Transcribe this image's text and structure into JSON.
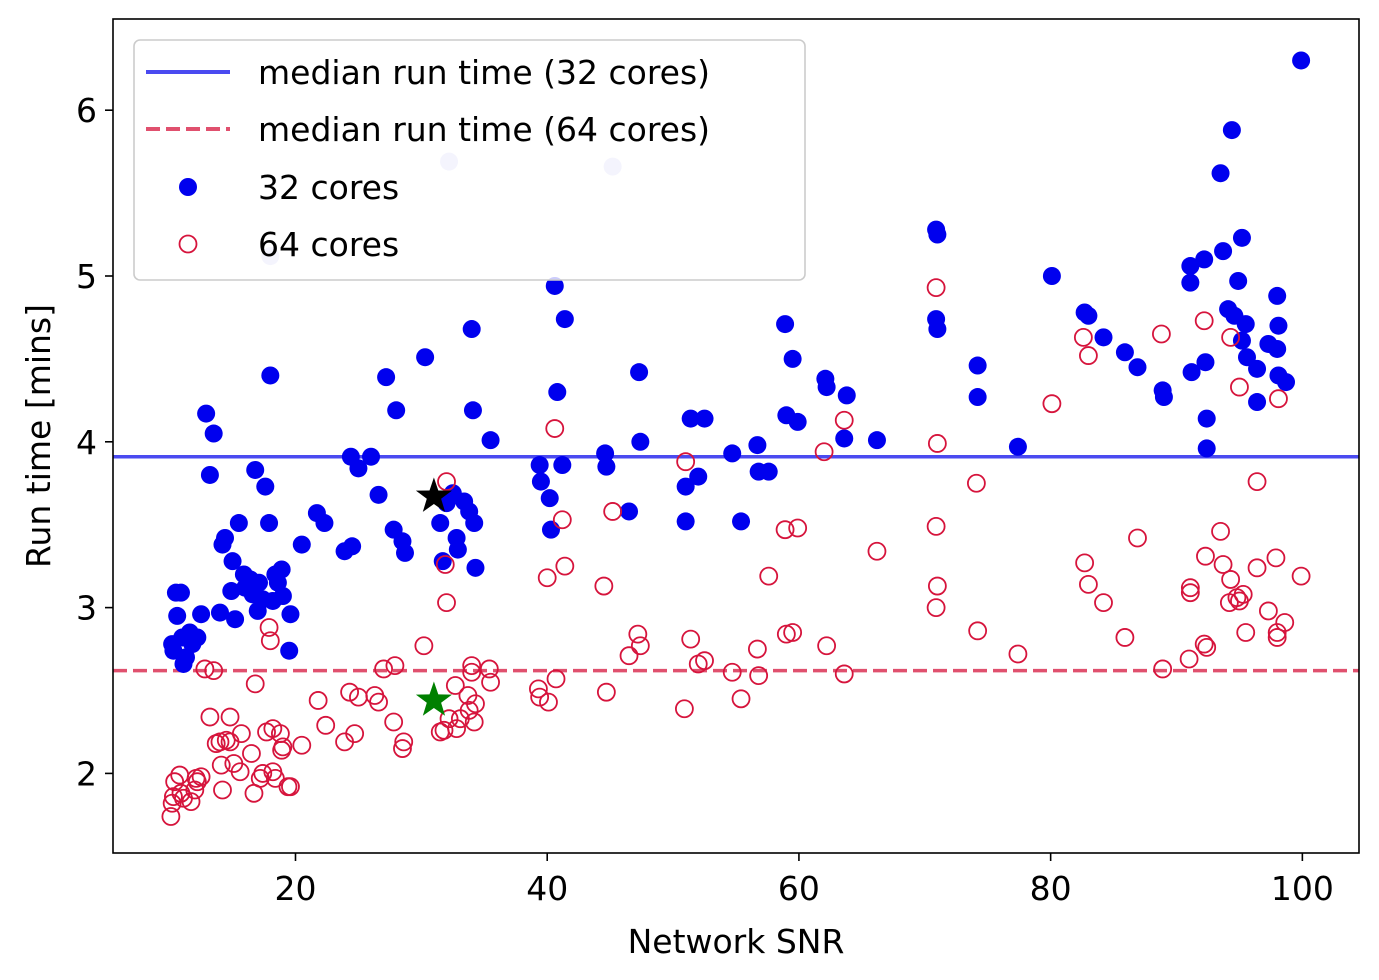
{
  "chart_data": {
    "type": "scatter",
    "title": "",
    "xlabel": "Network SNR",
    "ylabel": "Run time [mins]",
    "xlim": [
      5.5,
      104.5
    ],
    "ylim": [
      1.52,
      6.55
    ],
    "xticks": [
      20,
      40,
      60,
      80,
      100
    ],
    "yticks": [
      2,
      3,
      4,
      5,
      6
    ],
    "xtick_labels": [
      "20",
      "40",
      "60",
      "80",
      "100"
    ],
    "ytick_labels": [
      "2",
      "3",
      "4",
      "5",
      "6"
    ],
    "grid": false,
    "legend_position": "top-left",
    "legend": [
      {
        "label": "median run time (32 cores)",
        "kind": "solid-line",
        "color": "#4a4af0"
      },
      {
        "label": "median run time (64 cores)",
        "kind": "dashed-line",
        "color": "#e0506e"
      },
      {
        "label": "32 cores",
        "kind": "filled-marker",
        "color": "#0000ee"
      },
      {
        "label": "64 cores",
        "kind": "open-marker",
        "color": "#d6143c"
      }
    ],
    "hlines": [
      {
        "name": "median-32",
        "y": 3.91,
        "style": "solid",
        "color": "#4a4af0"
      },
      {
        "name": "median-64",
        "y": 2.62,
        "style": "dashed",
        "color": "#e0506e"
      }
    ],
    "highlights": [
      {
        "name": "star-black",
        "x": 31,
        "y": 3.67,
        "color": "#000000"
      },
      {
        "name": "star-green",
        "x": 31,
        "y": 2.44,
        "color": "#008000"
      }
    ],
    "series": [
      {
        "name": "32 cores",
        "color": "#0000ee",
        "marker": "filled",
        "points": [
          [
            10.2,
            2.78
          ],
          [
            10.3,
            2.74
          ],
          [
            10.5,
            3.09
          ],
          [
            10.6,
            2.95
          ],
          [
            10.9,
            3.09
          ],
          [
            11.0,
            2.82
          ],
          [
            11.1,
            2.66
          ],
          [
            11.3,
            2.7
          ],
          [
            11.6,
            2.85
          ],
          [
            11.8,
            2.78
          ],
          [
            12.2,
            2.82
          ],
          [
            12.5,
            2.96
          ],
          [
            12.9,
            4.17
          ],
          [
            13.2,
            3.8
          ],
          [
            13.5,
            4.05
          ],
          [
            14.0,
            2.97
          ],
          [
            14.2,
            3.38
          ],
          [
            14.4,
            3.42
          ],
          [
            14.9,
            3.1
          ],
          [
            15.0,
            3.28
          ],
          [
            15.2,
            2.93
          ],
          [
            15.5,
            3.51
          ],
          [
            15.9,
            3.2
          ],
          [
            16.0,
            3.12
          ],
          [
            16.4,
            3.17
          ],
          [
            16.6,
            3.08
          ],
          [
            16.8,
            3.83
          ],
          [
            17.0,
            2.98
          ],
          [
            17.1,
            3.15
          ],
          [
            17.4,
            3.05
          ],
          [
            17.6,
            3.73
          ],
          [
            17.9,
            3.51
          ],
          [
            18.0,
            4.4
          ],
          [
            18.2,
            3.04
          ],
          [
            18.4,
            3.2
          ],
          [
            18.6,
            3.15
          ],
          [
            18.9,
            3.23
          ],
          [
            19.0,
            3.07
          ],
          [
            19.5,
            2.74
          ],
          [
            19.6,
            2.96
          ],
          [
            20.5,
            3.38
          ],
          [
            21.7,
            3.57
          ],
          [
            22.3,
            3.51
          ],
          [
            23.9,
            3.34
          ],
          [
            24.5,
            3.37
          ],
          [
            24.4,
            3.91
          ],
          [
            25.0,
            3.84
          ],
          [
            26.0,
            3.91
          ],
          [
            26.6,
            3.68
          ],
          [
            27.2,
            4.39
          ],
          [
            27.8,
            3.47
          ],
          [
            28.0,
            4.19
          ],
          [
            28.5,
            3.4
          ],
          [
            28.7,
            3.33
          ],
          [
            30.3,
            4.51
          ],
          [
            31.5,
            3.51
          ],
          [
            31.7,
            3.28
          ],
          [
            32.0,
            3.63
          ],
          [
            32.5,
            3.69
          ],
          [
            32.8,
            3.42
          ],
          [
            32.9,
            3.35
          ],
          [
            33.4,
            3.64
          ],
          [
            33.8,
            3.58
          ],
          [
            34.0,
            4.68
          ],
          [
            34.1,
            4.19
          ],
          [
            34.2,
            3.51
          ],
          [
            34.3,
            3.24
          ],
          [
            35.5,
            4.01
          ],
          [
            39.4,
            3.86
          ],
          [
            39.5,
            3.76
          ],
          [
            40.2,
            3.66
          ],
          [
            40.3,
            3.47
          ],
          [
            40.6,
            4.94
          ],
          [
            40.8,
            4.3
          ],
          [
            41.2,
            3.86
          ],
          [
            41.4,
            4.74
          ],
          [
            44.6,
            3.93
          ],
          [
            44.7,
            3.85
          ],
          [
            46.5,
            3.58
          ],
          [
            47.3,
            4.42
          ],
          [
            47.4,
            4.0
          ],
          [
            51.0,
            3.52
          ],
          [
            51.0,
            3.73
          ],
          [
            51.4,
            4.14
          ],
          [
            52.0,
            3.79
          ],
          [
            52.5,
            4.14
          ],
          [
            54.7,
            3.93
          ],
          [
            55.4,
            3.52
          ],
          [
            56.7,
            3.98
          ],
          [
            56.8,
            3.82
          ],
          [
            57.6,
            3.82
          ],
          [
            58.9,
            4.71
          ],
          [
            59.0,
            4.16
          ],
          [
            59.5,
            4.5
          ],
          [
            59.9,
            4.12
          ],
          [
            62.1,
            4.38
          ],
          [
            62.2,
            4.33
          ],
          [
            63.6,
            4.02
          ],
          [
            63.8,
            4.28
          ],
          [
            66.2,
            4.01
          ],
          [
            70.9,
            5.28
          ],
          [
            71.0,
            5.25
          ],
          [
            70.9,
            4.74
          ],
          [
            71.0,
            4.68
          ],
          [
            74.2,
            4.46
          ],
          [
            74.2,
            4.27
          ],
          [
            77.4,
            3.97
          ],
          [
            80.1,
            5.0
          ],
          [
            82.7,
            4.78
          ],
          [
            83.0,
            4.76
          ],
          [
            84.2,
            4.63
          ],
          [
            85.9,
            4.54
          ],
          [
            86.9,
            4.45
          ],
          [
            88.9,
            4.31
          ],
          [
            89.0,
            4.27
          ],
          [
            91.1,
            5.06
          ],
          [
            91.1,
            4.96
          ],
          [
            91.2,
            4.42
          ],
          [
            92.2,
            5.1
          ],
          [
            92.3,
            4.48
          ],
          [
            92.4,
            4.14
          ],
          [
            92.4,
            3.96
          ],
          [
            93.5,
            5.62
          ],
          [
            93.7,
            5.15
          ],
          [
            94.1,
            4.8
          ],
          [
            94.4,
            5.88
          ],
          [
            94.6,
            4.76
          ],
          [
            94.9,
            4.97
          ],
          [
            95.2,
            5.23
          ],
          [
            95.2,
            4.61
          ],
          [
            95.5,
            4.71
          ],
          [
            95.6,
            4.51
          ],
          [
            96.4,
            4.44
          ],
          [
            96.4,
            4.24
          ],
          [
            97.3,
            4.59
          ],
          [
            98.0,
            4.88
          ],
          [
            98.0,
            4.56
          ],
          [
            98.1,
            4.7
          ],
          [
            98.1,
            4.4
          ],
          [
            98.7,
            4.36
          ],
          [
            99.9,
            6.3
          ]
        ]
      },
      {
        "name": "64 cores",
        "color": "#d6143c",
        "marker": "open",
        "points": [
          [
            10.1,
            1.74
          ],
          [
            10.2,
            1.82
          ],
          [
            10.3,
            1.86
          ],
          [
            10.4,
            1.95
          ],
          [
            10.8,
            1.99
          ],
          [
            10.9,
            1.88
          ],
          [
            11.1,
            1.85
          ],
          [
            11.7,
            1.83
          ],
          [
            12.0,
            1.9
          ],
          [
            12.1,
            1.97
          ],
          [
            12.2,
            1.95
          ],
          [
            12.5,
            1.98
          ],
          [
            12.8,
            2.63
          ],
          [
            13.2,
            2.34
          ],
          [
            13.5,
            2.62
          ],
          [
            13.7,
            2.18
          ],
          [
            14.0,
            2.19
          ],
          [
            14.2,
            1.9
          ],
          [
            14.1,
            2.05
          ],
          [
            14.5,
            2.2
          ],
          [
            14.8,
            2.19
          ],
          [
            14.8,
            2.34
          ],
          [
            15.1,
            2.06
          ],
          [
            15.6,
            2.01
          ],
          [
            15.7,
            2.24
          ],
          [
            16.5,
            2.12
          ],
          [
            16.7,
            1.88
          ],
          [
            16.8,
            2.54
          ],
          [
            17.2,
            1.97
          ],
          [
            17.4,
            2.0
          ],
          [
            17.7,
            2.25
          ],
          [
            17.9,
            2.88
          ],
          [
            18.0,
            2.8
          ],
          [
            18.2,
            2.27
          ],
          [
            18.2,
            2.01
          ],
          [
            18.4,
            1.97
          ],
          [
            18.8,
            2.24
          ],
          [
            18.9,
            2.14
          ],
          [
            19.0,
            2.16
          ],
          [
            19.4,
            1.92
          ],
          [
            19.6,
            1.92
          ],
          [
            20.5,
            2.17
          ],
          [
            21.8,
            2.44
          ],
          [
            22.4,
            2.29
          ],
          [
            23.9,
            2.19
          ],
          [
            24.3,
            2.49
          ],
          [
            24.7,
            2.24
          ],
          [
            25.0,
            2.46
          ],
          [
            26.3,
            2.47
          ],
          [
            26.6,
            2.43
          ],
          [
            27.0,
            2.63
          ],
          [
            27.8,
            2.31
          ],
          [
            27.9,
            2.65
          ],
          [
            28.5,
            2.15
          ],
          [
            28.6,
            2.19
          ],
          [
            30.2,
            2.77
          ],
          [
            31.5,
            2.25
          ],
          [
            31.8,
            2.26
          ],
          [
            31.9,
            3.26
          ],
          [
            32.0,
            3.76
          ],
          [
            32.0,
            3.03
          ],
          [
            32.2,
            2.33
          ],
          [
            32.7,
            2.53
          ],
          [
            32.8,
            2.27
          ],
          [
            33.1,
            2.33
          ],
          [
            33.7,
            2.47
          ],
          [
            33.8,
            2.38
          ],
          [
            34.0,
            2.65
          ],
          [
            34.0,
            2.61
          ],
          [
            34.2,
            2.31
          ],
          [
            34.3,
            2.42
          ],
          [
            35.4,
            2.63
          ],
          [
            35.5,
            2.55
          ],
          [
            39.3,
            2.51
          ],
          [
            39.4,
            2.46
          ],
          [
            40.0,
            3.18
          ],
          [
            40.1,
            2.43
          ],
          [
            40.6,
            4.08
          ],
          [
            40.7,
            2.57
          ],
          [
            41.2,
            3.53
          ],
          [
            41.4,
            3.25
          ],
          [
            44.5,
            3.13
          ],
          [
            44.7,
            2.49
          ],
          [
            45.2,
            3.58
          ],
          [
            46.5,
            2.71
          ],
          [
            47.2,
            2.84
          ],
          [
            47.4,
            2.77
          ],
          [
            51.0,
            3.88
          ],
          [
            50.9,
            2.39
          ],
          [
            51.4,
            2.81
          ],
          [
            52.0,
            2.66
          ],
          [
            52.5,
            2.68
          ],
          [
            54.7,
            2.61
          ],
          [
            55.4,
            2.45
          ],
          [
            56.7,
            2.75
          ],
          [
            56.8,
            2.59
          ],
          [
            57.6,
            3.19
          ],
          [
            58.9,
            3.47
          ],
          [
            59.0,
            2.84
          ],
          [
            59.5,
            2.85
          ],
          [
            59.9,
            3.48
          ],
          [
            62.0,
            3.94
          ],
          [
            62.2,
            2.77
          ],
          [
            63.6,
            4.13
          ],
          [
            63.6,
            2.6
          ],
          [
            66.2,
            3.34
          ],
          [
            70.9,
            4.93
          ],
          [
            71.0,
            3.99
          ],
          [
            70.9,
            3.49
          ],
          [
            71.0,
            3.13
          ],
          [
            70.9,
            3.0
          ],
          [
            74.1,
            3.75
          ],
          [
            74.2,
            2.86
          ],
          [
            77.4,
            2.72
          ],
          [
            80.1,
            4.23
          ],
          [
            82.6,
            4.63
          ],
          [
            82.7,
            3.27
          ],
          [
            83.0,
            4.52
          ],
          [
            83.0,
            3.14
          ],
          [
            84.2,
            3.03
          ],
          [
            85.9,
            2.82
          ],
          [
            86.9,
            3.42
          ],
          [
            88.8,
            4.65
          ],
          [
            88.9,
            2.63
          ],
          [
            91.1,
            3.12
          ],
          [
            91.1,
            3.09
          ],
          [
            91.0,
            2.69
          ],
          [
            92.2,
            4.73
          ],
          [
            92.2,
            2.78
          ],
          [
            92.3,
            3.31
          ],
          [
            92.4,
            2.76
          ],
          [
            93.5,
            3.46
          ],
          [
            93.7,
            3.26
          ],
          [
            94.2,
            3.03
          ],
          [
            94.3,
            4.63
          ],
          [
            94.3,
            3.17
          ],
          [
            94.8,
            3.06
          ],
          [
            95.0,
            4.33
          ],
          [
            95.0,
            3.04
          ],
          [
            95.3,
            3.08
          ],
          [
            95.5,
            2.85
          ],
          [
            96.4,
            3.76
          ],
          [
            96.4,
            3.24
          ],
          [
            97.3,
            2.98
          ],
          [
            97.9,
            3.3
          ],
          [
            98.0,
            2.85
          ],
          [
            98.0,
            2.82
          ],
          [
            98.1,
            4.26
          ],
          [
            98.6,
            2.91
          ],
          [
            99.9,
            3.19
          ]
        ]
      }
    ],
    "faded_points": [
      {
        "x": 32.2,
        "y": 5.69
      },
      {
        "x": 45.2,
        "y": 5.66
      },
      {
        "x": 18.0,
        "y": 5.12
      }
    ]
  }
}
